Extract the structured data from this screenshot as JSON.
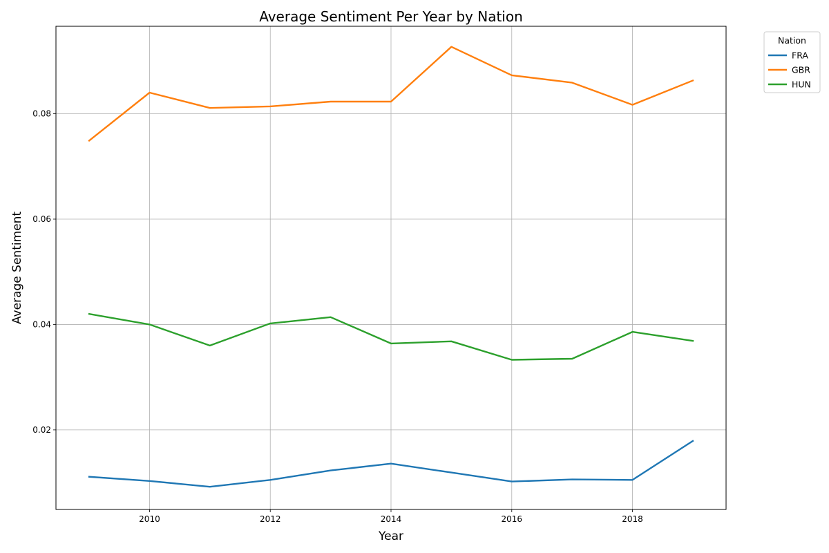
{
  "chart_data": {
    "type": "line",
    "title": "Average Sentiment Per Year by Nation",
    "xlabel": "Year",
    "ylabel": "Average Sentiment",
    "x": [
      2009,
      2010,
      2011,
      2012,
      2013,
      2014,
      2015,
      2016,
      2017,
      2018,
      2019
    ],
    "xlim": [
      2008.45,
      2019.55
    ],
    "ylim": [
      0.0049,
      0.0966
    ],
    "x_ticks": [
      2010,
      2012,
      2014,
      2016,
      2018
    ],
    "x_tick_labels": [
      "2010",
      "2012",
      "2014",
      "2016",
      "2018"
    ],
    "y_ticks": [
      0.02,
      0.04,
      0.06,
      0.08
    ],
    "y_tick_labels": [
      "0.02",
      "0.04",
      "0.06",
      "0.08"
    ],
    "grid": true,
    "legend": {
      "title": "Nation",
      "placement": "outside-top-right"
    },
    "series": [
      {
        "name": "FRA",
        "color": "#1f77b4",
        "values": [
          0.0111,
          0.0103,
          0.0092,
          0.0105,
          0.0123,
          0.0136,
          0.0119,
          0.0102,
          0.0106,
          0.0105,
          0.0179
        ]
      },
      {
        "name": "GBR",
        "color": "#ff7f0e",
        "values": [
          0.0749,
          0.084,
          0.0811,
          0.0814,
          0.0823,
          0.0823,
          0.0927,
          0.0873,
          0.0859,
          0.0817,
          0.0863
        ]
      },
      {
        "name": "HUN",
        "color": "#2ca02c",
        "values": [
          0.042,
          0.04,
          0.036,
          0.0402,
          0.0414,
          0.0364,
          0.0368,
          0.0333,
          0.0335,
          0.0386,
          0.0369
        ]
      }
    ]
  }
}
